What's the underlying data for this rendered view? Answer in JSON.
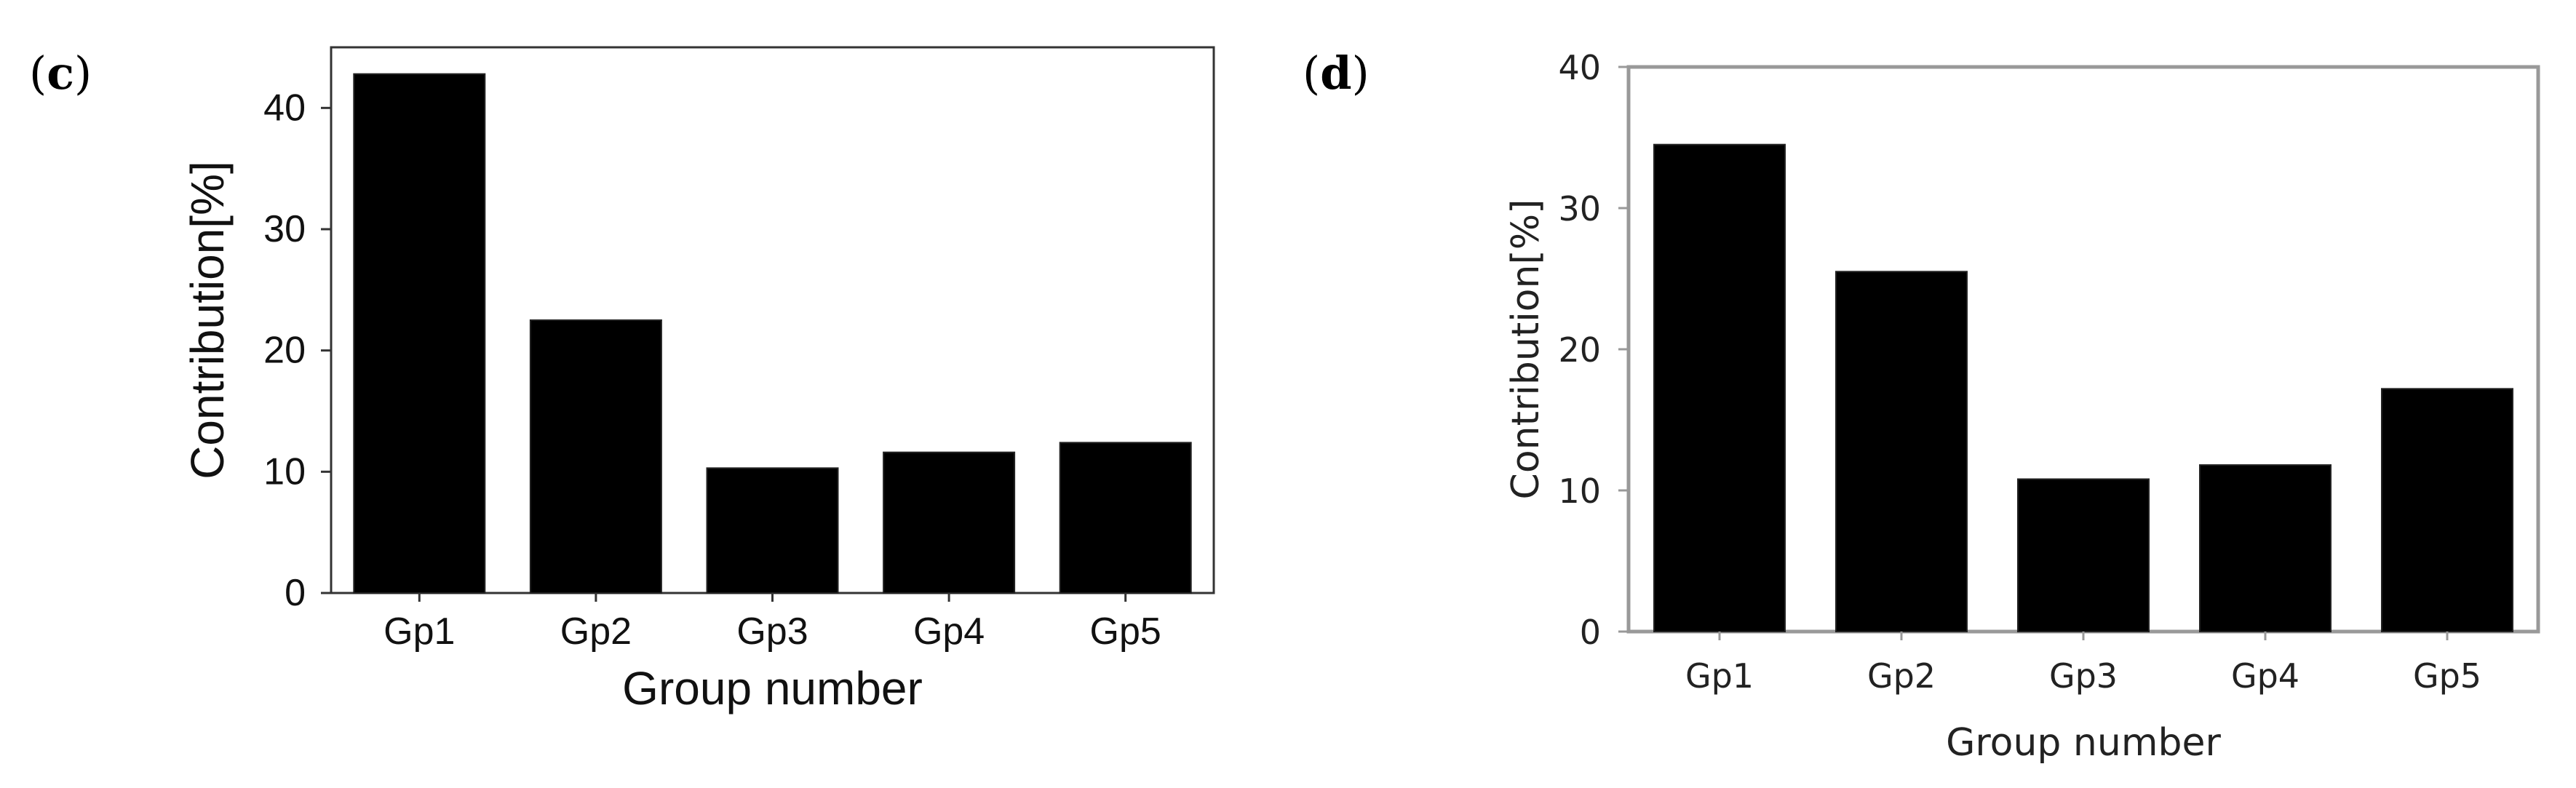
{
  "chart_data": [
    {
      "panel": "(c)",
      "panel_letter": "c",
      "type": "bar",
      "categories": [
        "Gp1",
        "Gp2",
        "Gp3",
        "Gp4",
        "Gp5"
      ],
      "values": [
        42.8,
        22.5,
        10.3,
        11.6,
        12.4
      ],
      "xlabel": "Group number",
      "ylabel": "Contribution[%]",
      "ylim": [
        0,
        45
      ],
      "yticks": [
        0,
        10,
        20,
        30,
        40
      ],
      "grid": false,
      "bar_color": "#000000"
    },
    {
      "panel": "(d)",
      "panel_letter": "d",
      "type": "bar",
      "categories": [
        "Gp1",
        "Gp2",
        "Gp3",
        "Gp4",
        "Gp5"
      ],
      "values": [
        34.5,
        25.5,
        10.8,
        11.8,
        17.2
      ],
      "xlabel": "Group number",
      "ylabel": "Contribution[%]",
      "ylim": [
        0,
        40
      ],
      "yticks": [
        0,
        10,
        20,
        30,
        40
      ],
      "grid": false,
      "bar_color": "#000000"
    }
  ]
}
